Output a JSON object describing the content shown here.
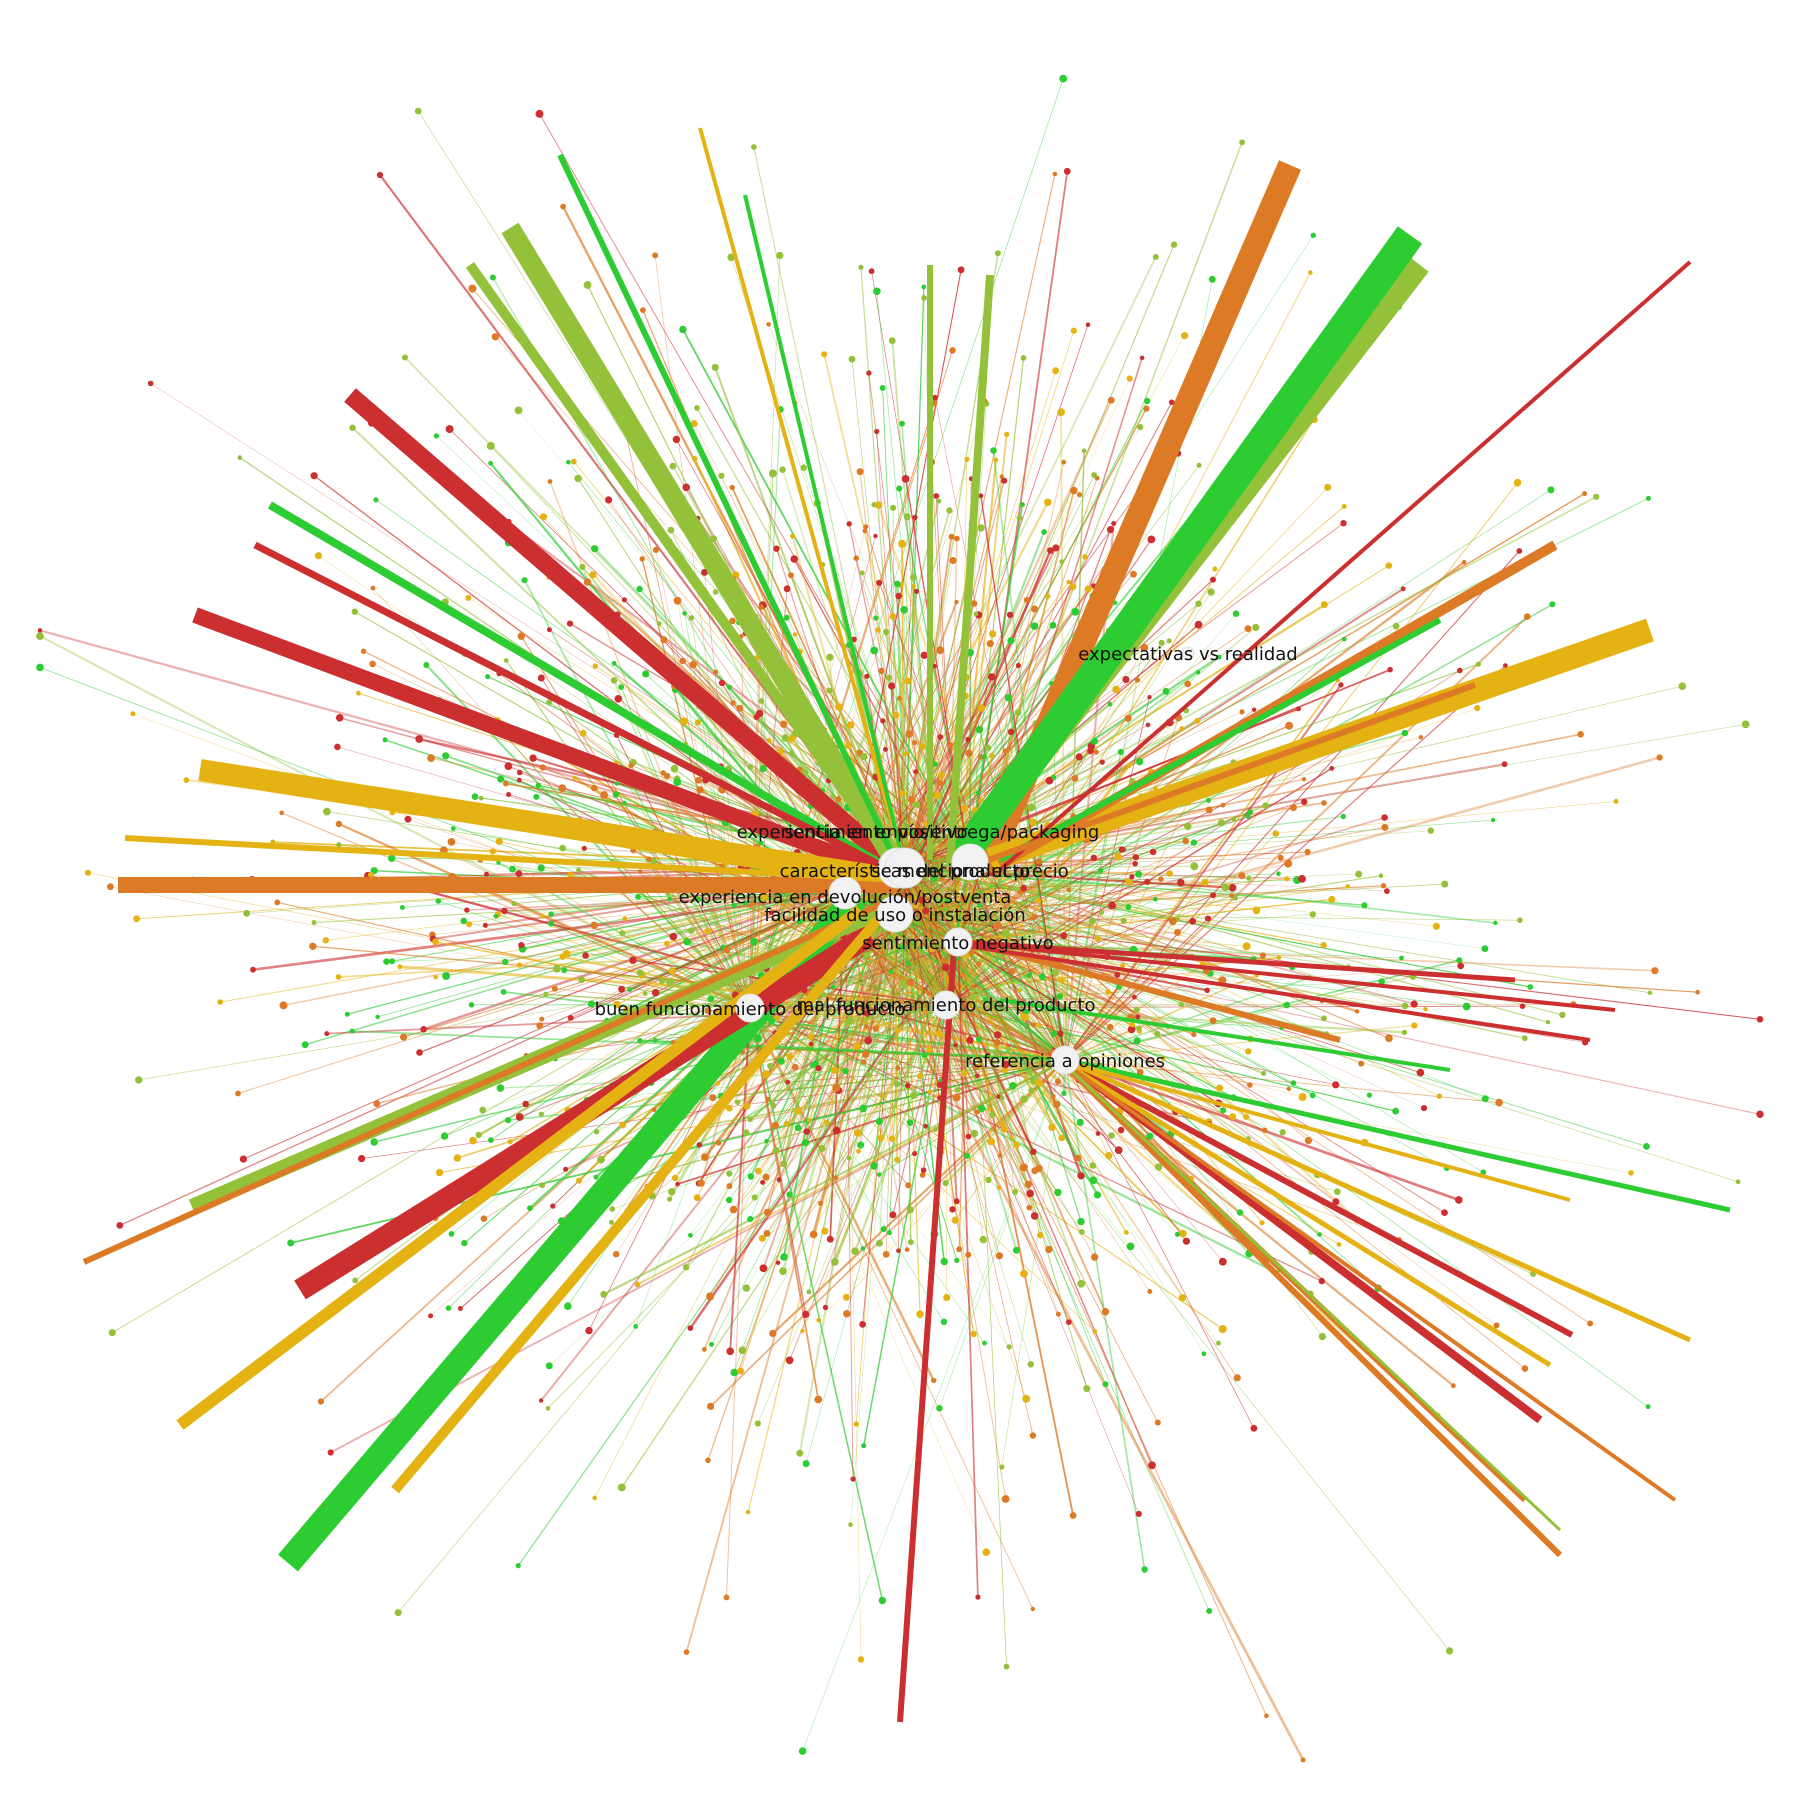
{
  "graph": {
    "type": "network-graph",
    "background": "#ffffff",
    "palette": {
      "red": "#cc2f2f",
      "orange": "#dd7a26",
      "amber": "#e4b212",
      "lime": "#93c13a",
      "green": "#2ecc33",
      "hub_fill": "#f2f2f2"
    },
    "hubs": [
      {
        "id": "experiencia-envio",
        "label": "experiencia en envío/entrega/packaging"
      },
      {
        "id": "sentimiento-positivo",
        "label": "sentimiento positivo"
      },
      {
        "id": "caracteristicas",
        "label": "características del producto"
      },
      {
        "id": "menciona-precio",
        "label": "se menciona el precio"
      },
      {
        "id": "experiencia-devolucion",
        "label": "experiencia en devolución/postventa"
      },
      {
        "id": "facilidad-uso",
        "label": "facilidad de uso o instalación"
      },
      {
        "id": "sentimiento-negativo",
        "label": "sentimiento negativo"
      },
      {
        "id": "buen-funcionamiento",
        "label": "buen funcionamiento del producto"
      },
      {
        "id": "mal-funcionamiento",
        "label": "mal funcionamiento del producto"
      },
      {
        "id": "referencia-opiniones",
        "label": "referencia a opiniones"
      },
      {
        "id": "expectativas",
        "label": "expectativas vs realidad"
      }
    ],
    "prominent_edges": [
      {
        "color": "green"
      },
      {
        "color": "lime"
      },
      {
        "color": "orange"
      },
      {
        "color": "amber"
      },
      {
        "color": "red"
      },
      {
        "color": "red"
      },
      {
        "color": "red"
      },
      {
        "color": "amber"
      },
      {
        "color": "orange"
      },
      {
        "color": "lime"
      },
      {
        "color": "red"
      },
      {
        "color": "orange"
      },
      {
        "color": "amber"
      },
      {
        "color": "green"
      },
      {
        "color": "amber"
      },
      {
        "color": "lime"
      },
      {
        "color": "lime"
      },
      {
        "color": "green"
      },
      {
        "color": "orange"
      },
      {
        "color": "green"
      },
      {
        "color": "amber"
      },
      {
        "color": "red"
      },
      {
        "color": "red"
      },
      {
        "color": "orange"
      },
      {
        "color": "orange"
      },
      {
        "color": "red"
      },
      {
        "color": "orange"
      },
      {
        "color": "amber"
      },
      {
        "color": "green"
      },
      {
        "color": "amber"
      },
      {
        "color": "red"
      },
      {
        "color": "green"
      },
      {
        "color": "lime"
      },
      {
        "color": "orange"
      },
      {
        "color": "amber"
      },
      {
        "color": "green"
      },
      {
        "color": "red"
      },
      {
        "color": "lime"
      },
      {
        "color": "red"
      },
      {
        "color": "orange"
      },
      {
        "color": "amber"
      },
      {
        "color": "green"
      },
      {
        "color": "lime"
      },
      {
        "color": "red"
      }
    ]
  }
}
